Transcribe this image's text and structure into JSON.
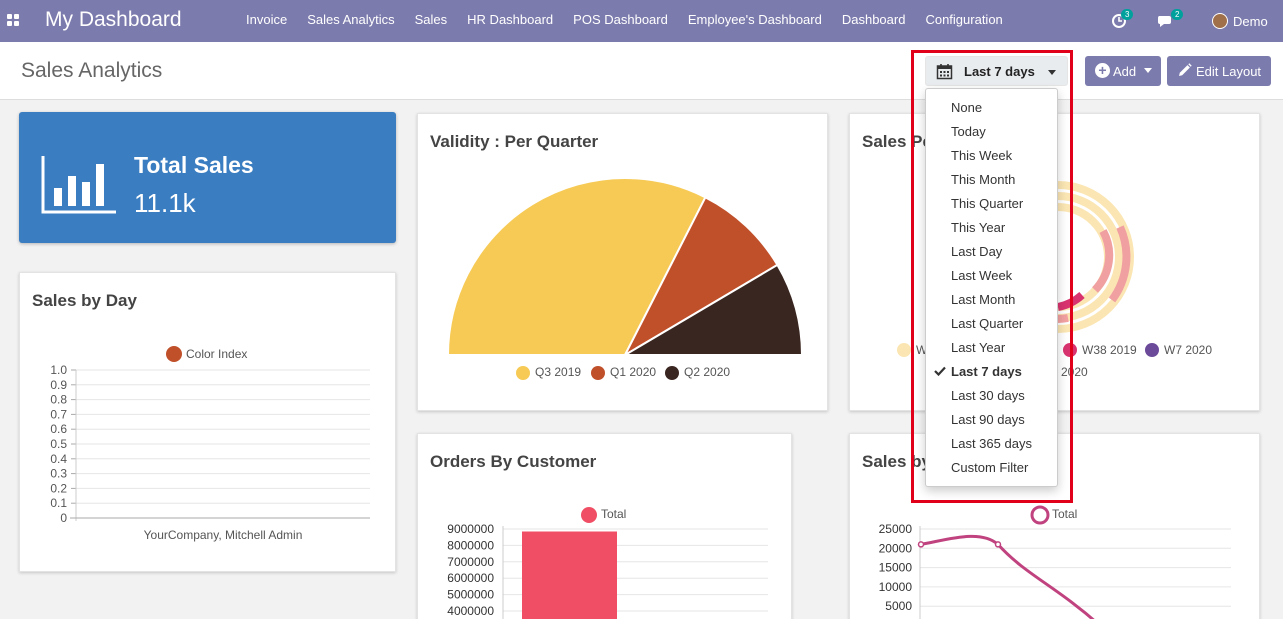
{
  "navbar": {
    "brand": "My Dashboard",
    "menu": [
      "Invoice",
      "Sales Analytics",
      "Sales",
      "HR Dashboard",
      "POS Dashboard",
      "Employee's Dashboard",
      "Dashboard",
      "Configuration"
    ],
    "activity_count": "3",
    "messages_count": "2",
    "user": "Demo",
    "color": "#7c7bad"
  },
  "control_panel": {
    "title": "Sales Analytics",
    "date_filter": "Last 7 days",
    "add_label": "Add",
    "edit_label": "Edit Layout"
  },
  "date_dropdown": {
    "selected": "Last 7 days",
    "options": [
      "None",
      "Today",
      "This Week",
      "This Month",
      "This Quarter",
      "This Year",
      "Last Day",
      "Last Week",
      "Last Month",
      "Last Quarter",
      "Last Year",
      "Last 7 days",
      "Last 30 days",
      "Last 90 days",
      "Last 365 days",
      "Custom Filter"
    ]
  },
  "kpi": {
    "label": "Total Sales",
    "value": "11.1k",
    "color": "#3a7dc0"
  },
  "cards": {
    "sales_by_day": {
      "title": "Sales by Day"
    },
    "validity": {
      "title": "Validity : Per Quarter"
    },
    "sales_per": {
      "title": "Sales Pe"
    },
    "orders_by_customer": {
      "title": "Orders By Customer"
    },
    "sales_by": {
      "title": "Sales by"
    }
  },
  "chart_data": [
    {
      "type": "bar",
      "title": "Sales by Day",
      "legend": [
        {
          "name": "Color Index",
          "color": "#c0502a"
        }
      ],
      "categories": [
        "YourCompany, Mitchell Admin"
      ],
      "series": [
        {
          "name": "Color Index",
          "values": [
            0
          ]
        }
      ],
      "yticks": [
        "1.0",
        "0.9",
        "0.8",
        "0.7",
        "0.6",
        "0.5",
        "0.4",
        "0.3",
        "0.2",
        "0.1",
        "0"
      ],
      "ylim": [
        0,
        1
      ]
    },
    {
      "type": "pie",
      "title": "Validity : Per Quarter",
      "half": true,
      "labels": [
        "Q3 2019",
        "Q1 2020",
        "Q2 2020"
      ],
      "values": [
        65,
        18,
        17
      ],
      "colors": [
        "#f6ca55",
        "#c0502a",
        "#3a2620"
      ]
    },
    {
      "type": "pie",
      "title": "Sales Pe",
      "legend": [
        {
          "name": "W",
          "color": "#fbe6b3"
        },
        {
          "name": "W38 2019",
          "color": "#d9336f"
        },
        {
          "name": "W7 2020",
          "color": "#6b4a9a"
        },
        {
          "name": "7 2020",
          "color": ""
        }
      ]
    },
    {
      "type": "bar",
      "title": "Orders By Customer",
      "legend": [
        {
          "name": "Total",
          "color": "#f04e64"
        }
      ],
      "yticks": [
        "9000000",
        "8000000",
        "7000000",
        "6000000",
        "5000000",
        "4000000"
      ],
      "series": [
        {
          "name": "Total",
          "values": [
            8850000
          ]
        }
      ],
      "ylim": [
        4000000,
        9000000
      ]
    },
    {
      "type": "line",
      "title": "Sales by",
      "legend": [
        {
          "name": "Total",
          "color": "#c0437f"
        }
      ],
      "yticks": [
        "25000",
        "20000",
        "15000",
        "10000",
        "5000"
      ],
      "series": [
        {
          "name": "Total",
          "values": [
            21000,
            21000,
            0
          ]
        }
      ],
      "ylim": [
        0,
        25000
      ]
    }
  ]
}
